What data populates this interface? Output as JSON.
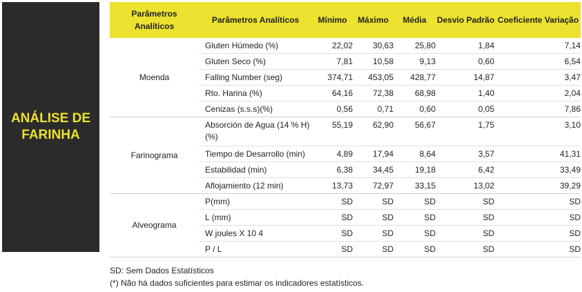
{
  "panel_title": "ANÁLISE DE FARINHA",
  "headers": [
    "Parâmetros Analíticos",
    "Parâmetros Analíticos",
    "Mínimo",
    "Máximo",
    "Média",
    "Desvio Padrão",
    "Coeficiente Variação"
  ],
  "groups": [
    {
      "name": "Moenda",
      "rows": [
        [
          "Gluten Húmedo (%)",
          "22,02",
          "30,63",
          "25,80",
          "1,84",
          "7,14"
        ],
        [
          "Gluten Seco (%)",
          "7,81",
          "10,58",
          "9,13",
          "0,60",
          "6,54"
        ],
        [
          "Falling Number (seg)",
          "374,71",
          "453,05",
          "428,77",
          "14,87",
          "3,47"
        ],
        [
          "Rto. Harina (%)",
          "64,16",
          "72,38",
          "68,98",
          "1,40",
          "2,04"
        ],
        [
          "Cenizas (s.s.s)(%)",
          "0,56",
          "0,71",
          "0,60",
          "0,05",
          "7,86"
        ]
      ]
    },
    {
      "name": "Farinograma",
      "rows": [
        [
          "Absorción de Agua (14 % H) (%)",
          "55,19",
          "62,90",
          "56,67",
          "1,75",
          "3,10"
        ],
        [
          "Tiempo de Desarrollo (min)",
          "4,89",
          "17,94",
          "8,64",
          "3,57",
          "41,31"
        ],
        [
          "Estabilidad (min)",
          "6,38",
          "34,45",
          "19,18",
          "6,42",
          "33,49"
        ],
        [
          "Aflojamiento (12 min)",
          "13,73",
          "72,97",
          "33,15",
          "13,02",
          "39,29"
        ]
      ]
    },
    {
      "name": "Alveograma",
      "rows": [
        [
          "P(mm)",
          "SD",
          "SD",
          "SD",
          "SD",
          "SD"
        ],
        [
          "L (mm)",
          "SD",
          "SD",
          "SD",
          "SD",
          "SD"
        ],
        [
          "W joules X 10 4",
          "SD",
          "SD",
          "SD",
          "SD",
          "SD"
        ],
        [
          "P / L",
          "SD",
          "SD",
          "SD",
          "SD",
          "SD"
        ]
      ]
    }
  ],
  "footnotes": [
    "SD: Sem Dados Estatísticos",
    "(*) Não há dados suficientes para estimar os indicadores estatísticos."
  ]
}
